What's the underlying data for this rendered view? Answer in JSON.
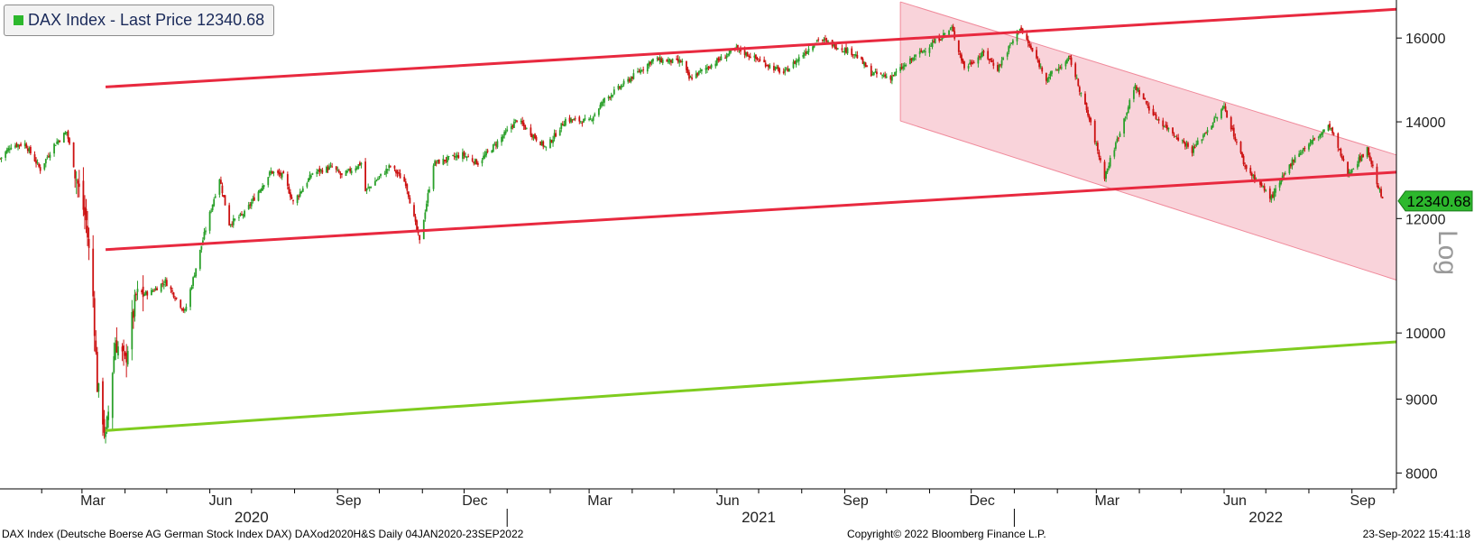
{
  "legend": {
    "text": "DAX Index - Last Price 12340.68",
    "swatch_color": "#2db82d"
  },
  "footer": {
    "left": "DAX Index (Deutsche Boerse AG German Stock Index DAX) DAXod2020H&S  Daily 04JAN2020-23SEP2022",
    "center": "Copyright© 2022 Bloomberg Finance L.P.",
    "right": "23-Sep-2022 15:41:18"
  },
  "chart_data": {
    "type": "candlestick",
    "title": "DAX Index - Last Price 12340.68",
    "y_scale": "log",
    "y_scale_label": "Log",
    "ylim": [
      7800,
      17000
    ],
    "y_ticks": [
      8000,
      9000,
      10000,
      12000,
      14000,
      16000
    ],
    "xlim": [
      "2020-01-02",
      "2022-10-03"
    ],
    "x_month_ticks": [
      {
        "label": "Mar",
        "date": "2020-03-01"
      },
      {
        "label": "Jun",
        "date": "2020-06-01"
      },
      {
        "label": "Sep",
        "date": "2020-09-01"
      },
      {
        "label": "Dec",
        "date": "2020-12-01"
      },
      {
        "label": "Mar",
        "date": "2021-03-01"
      },
      {
        "label": "Jun",
        "date": "2021-06-01"
      },
      {
        "label": "Sep",
        "date": "2021-09-01"
      },
      {
        "label": "Dec",
        "date": "2021-12-01"
      },
      {
        "label": "Mar",
        "date": "2022-03-01"
      },
      {
        "label": "Jun",
        "date": "2022-06-01"
      },
      {
        "label": "Sep",
        "date": "2022-09-01"
      }
    ],
    "x_year_labels": [
      {
        "label": "2020",
        "date": "2020-07-01"
      },
      {
        "label": "2021",
        "date": "2021-07-01"
      },
      {
        "label": "2022",
        "date": "2022-07-01"
      }
    ],
    "up_color": "#2aa02a",
    "down_color": "#cc1010",
    "close_path": [
      [
        "2020-01-02",
        13200
      ],
      [
        "2020-01-10",
        13480
      ],
      [
        "2020-01-20",
        13520
      ],
      [
        "2020-01-31",
        12980
      ],
      [
        "2020-02-10",
        13500
      ],
      [
        "2020-02-19",
        13780
      ],
      [
        "2020-02-26",
        12800
      ],
      [
        "2020-03-04",
        11950
      ],
      [
        "2020-03-09",
        10600
      ],
      [
        "2020-03-12",
        9200
      ],
      [
        "2020-03-16",
        8740
      ],
      [
        "2020-03-18",
        8440
      ],
      [
        "2020-03-25",
        9870
      ],
      [
        "2020-04-01",
        9540
      ],
      [
        "2020-04-09",
        10600
      ],
      [
        "2020-04-20",
        10680
      ],
      [
        "2020-04-30",
        10860
      ],
      [
        "2020-05-14",
        10340
      ],
      [
        "2020-05-28",
        11700
      ],
      [
        "2020-06-08",
        12800
      ],
      [
        "2020-06-15",
        11900
      ],
      [
        "2020-06-26",
        12100
      ],
      [
        "2020-07-15",
        12930
      ],
      [
        "2020-07-24",
        12840
      ],
      [
        "2020-07-31",
        12310
      ],
      [
        "2020-08-14",
        12900
      ],
      [
        "2020-08-28",
        13030
      ],
      [
        "2020-09-04",
        12840
      ],
      [
        "2020-09-18",
        13110
      ],
      [
        "2020-09-21",
        12540
      ],
      [
        "2020-10-09",
        13050
      ],
      [
        "2020-10-20",
        12700
      ],
      [
        "2020-10-30",
        11560
      ],
      [
        "2020-11-09",
        13100
      ],
      [
        "2020-11-30",
        13290
      ],
      [
        "2020-12-11",
        13110
      ],
      [
        "2020-12-30",
        13720
      ],
      [
        "2021-01-08",
        14050
      ],
      [
        "2021-01-29",
        13430
      ],
      [
        "2021-02-12",
        14050
      ],
      [
        "2021-03-01",
        14010
      ],
      [
        "2021-03-12",
        14500
      ],
      [
        "2021-03-31",
        15010
      ],
      [
        "2021-04-16",
        15460
      ],
      [
        "2021-05-07",
        15400
      ],
      [
        "2021-05-12",
        14990
      ],
      [
        "2021-06-15",
        15730
      ],
      [
        "2021-07-19",
        15130
      ],
      [
        "2021-08-13",
        15980
      ],
      [
        "2021-09-08",
        15610
      ],
      [
        "2021-09-20",
        15130
      ],
      [
        "2021-10-04",
        15030
      ],
      [
        "2021-10-22",
        15540
      ],
      [
        "2021-11-17",
        16250
      ],
      [
        "2021-11-26",
        15260
      ],
      [
        "2021-12-10",
        15620
      ],
      [
        "2021-12-20",
        15240
      ],
      [
        "2022-01-05",
        16270
      ],
      [
        "2022-01-24",
        15010
      ],
      [
        "2022-02-10",
        15480
      ],
      [
        "2022-02-24",
        14050
      ],
      [
        "2022-03-07",
        12830
      ],
      [
        "2022-03-29",
        14820
      ],
      [
        "2022-04-12",
        14120
      ],
      [
        "2022-05-09",
        13380
      ],
      [
        "2022-06-01",
        14340
      ],
      [
        "2022-06-16",
        13040
      ],
      [
        "2022-07-05",
        12400
      ],
      [
        "2022-07-22",
        13250
      ],
      [
        "2022-08-16",
        13910
      ],
      [
        "2022-08-29",
        12890
      ],
      [
        "2022-09-12",
        13400
      ],
      [
        "2022-09-23",
        12340
      ]
    ],
    "last_price": {
      "label": "12340.68",
      "value": 12340.68,
      "color": "#2db82d"
    },
    "trendlines": [
      {
        "color": "#e8293f",
        "from": [
          "2020-03-18",
          14800
        ],
        "to": [
          "2022-10-03",
          16750
        ]
      },
      {
        "color": "#e8293f",
        "from": [
          "2020-03-18",
          11420
        ],
        "to": [
          "2022-10-03",
          12920
        ]
      },
      {
        "color": "#7fcc1f",
        "from": [
          "2020-03-18",
          8560
        ],
        "to": [
          "2022-10-03",
          9860
        ]
      }
    ],
    "channel": {
      "fill": "#f9d3da",
      "edge_color": "#f08a9b",
      "upper": {
        "from": [
          "2021-10-11",
          16950
        ],
        "to": [
          "2022-10-03",
          13280
        ]
      },
      "lower": {
        "from": [
          "2021-10-11",
          14020
        ],
        "to": [
          "2022-10-03",
          10880
        ]
      }
    }
  }
}
